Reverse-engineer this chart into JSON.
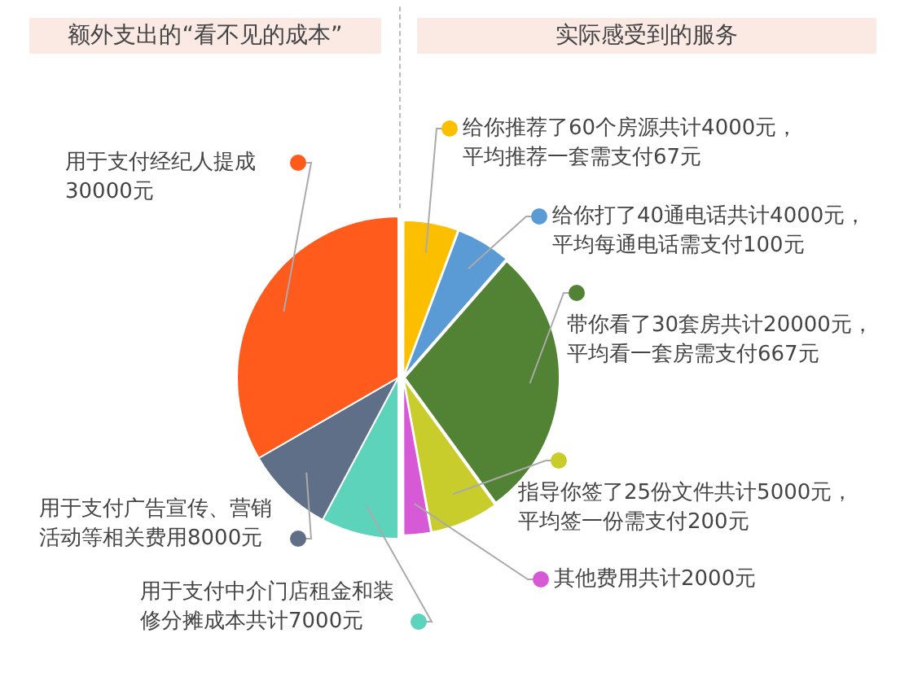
{
  "chart_data": [
    {
      "type": "pie",
      "title": "额外支出的“看不见的成本”",
      "categories": [
        "用于支付中介门店租金和装修分摊成本共计7000元",
        "用于支付广告宣传、营销活动等相关费用8000元",
        "用于支付经纪人提成30000元"
      ],
      "values": [
        7000,
        8000,
        30000
      ],
      "colors": [
        "#5dd3bc",
        "#5f6f88",
        "#fe5b1d"
      ],
      "legend": "left"
    },
    {
      "type": "pie",
      "title": "实际感受到的服务",
      "categories": [
        "给你推荐了60个房源共计4000元，平均推荐一套需支付67元",
        "给你打了40通电话共计4000元，平均每通电话需支付100元",
        "带你看了30套房共计20000元，平均看一套房需支付667元",
        "指导你签了25份文件共计5000元，平均签一份需支付200元",
        "其他费用共计2000元"
      ],
      "values": [
        4000,
        4000,
        20000,
        5000,
        2000
      ],
      "colors": [
        "#fcbf00",
        "#5b9bd5",
        "#528234",
        "#c8cd2c",
        "#d659d6"
      ],
      "legend": "right"
    }
  ]
}
